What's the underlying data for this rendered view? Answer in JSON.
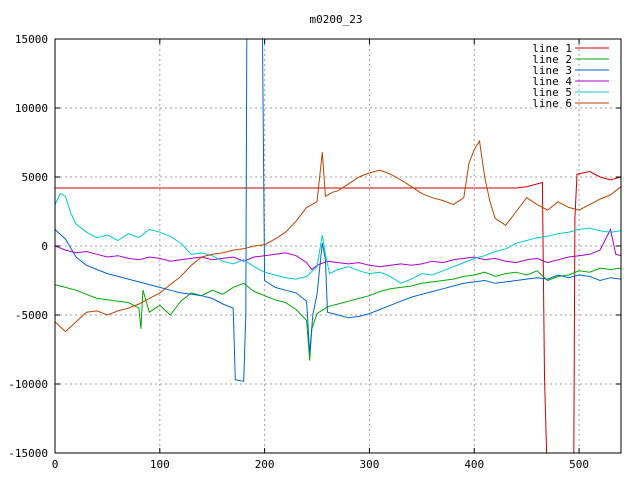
{
  "chart_data": {
    "type": "line",
    "title": "m0200_23",
    "xlabel": "",
    "ylabel": "",
    "xlim": [
      0,
      540
    ],
    "ylim": [
      -15000,
      15000
    ],
    "x_ticks": [
      0,
      100,
      200,
      300,
      400,
      500
    ],
    "y_ticks": [
      -15000,
      -10000,
      -5000,
      0,
      5000,
      10000,
      15000
    ],
    "grid": true,
    "legend_position": "top-right",
    "series": [
      {
        "name": "line 1",
        "color": "#cc0000",
        "points": [
          [
            0,
            4200
          ],
          [
            100,
            4200
          ],
          [
            200,
            4200
          ],
          [
            300,
            4200
          ],
          [
            440,
            4200
          ],
          [
            450,
            4300
          ],
          [
            465,
            4600
          ],
          [
            467,
            -9500
          ],
          [
            469,
            -15000
          ],
          [
            495,
            -15000
          ],
          [
            496,
            2000
          ],
          [
            498,
            5200
          ],
          [
            510,
            5400
          ],
          [
            520,
            5000
          ],
          [
            530,
            4800
          ],
          [
            540,
            5000
          ]
        ]
      },
      {
        "name": "line 2",
        "color": "#00aa00",
        "points": [
          [
            0,
            -2800
          ],
          [
            10,
            -3000
          ],
          [
            20,
            -3200
          ],
          [
            30,
            -3500
          ],
          [
            40,
            -3800
          ],
          [
            50,
            -3900
          ],
          [
            60,
            -4000
          ],
          [
            70,
            -4100
          ],
          [
            80,
            -4500
          ],
          [
            82,
            -6000
          ],
          [
            84,
            -3200
          ],
          [
            90,
            -4800
          ],
          [
            100,
            -4300
          ],
          [
            110,
            -5000
          ],
          [
            120,
            -4000
          ],
          [
            130,
            -3400
          ],
          [
            140,
            -3600
          ],
          [
            150,
            -3200
          ],
          [
            160,
            -3500
          ],
          [
            170,
            -3000
          ],
          [
            180,
            -2700
          ],
          [
            190,
            -3300
          ],
          [
            200,
            -3600
          ],
          [
            210,
            -3900
          ],
          [
            220,
            -4100
          ],
          [
            230,
            -4600
          ],
          [
            240,
            -5400
          ],
          [
            243,
            -8300
          ],
          [
            245,
            -6000
          ],
          [
            250,
            -4900
          ],
          [
            260,
            -4400
          ],
          [
            270,
            -4200
          ],
          [
            280,
            -4000
          ],
          [
            290,
            -3800
          ],
          [
            300,
            -3600
          ],
          [
            310,
            -3300
          ],
          [
            320,
            -3100
          ],
          [
            330,
            -3000
          ],
          [
            340,
            -2900
          ],
          [
            350,
            -2700
          ],
          [
            360,
            -2600
          ],
          [
            370,
            -2500
          ],
          [
            380,
            -2400
          ],
          [
            390,
            -2200
          ],
          [
            400,
            -2100
          ],
          [
            410,
            -1900
          ],
          [
            420,
            -2200
          ],
          [
            430,
            -2000
          ],
          [
            440,
            -1900
          ],
          [
            450,
            -2100
          ],
          [
            460,
            -1800
          ],
          [
            470,
            -2500
          ],
          [
            480,
            -2200
          ],
          [
            490,
            -2100
          ],
          [
            500,
            -1800
          ],
          [
            510,
            -1900
          ],
          [
            520,
            -1600
          ],
          [
            530,
            -1700
          ],
          [
            540,
            -1600
          ]
        ]
      },
      {
        "name": "line 3",
        "color": "#0066cc",
        "points": [
          [
            0,
            1200
          ],
          [
            10,
            500
          ],
          [
            20,
            -800
          ],
          [
            30,
            -1400
          ],
          [
            40,
            -1700
          ],
          [
            50,
            -2000
          ],
          [
            60,
            -2200
          ],
          [
            70,
            -2400
          ],
          [
            80,
            -2600
          ],
          [
            90,
            -2800
          ],
          [
            100,
            -3000
          ],
          [
            110,
            -3200
          ],
          [
            120,
            -3400
          ],
          [
            130,
            -3500
          ],
          [
            140,
            -3600
          ],
          [
            150,
            -3800
          ],
          [
            160,
            -4200
          ],
          [
            170,
            -4500
          ],
          [
            172,
            -9700
          ],
          [
            180,
            -9800
          ],
          [
            182,
            -5000
          ],
          [
            183,
            15000
          ],
          [
            190,
            15000
          ],
          [
            198,
            15000
          ],
          [
            200,
            -2500
          ],
          [
            210,
            -3000
          ],
          [
            220,
            -3200
          ],
          [
            230,
            -3400
          ],
          [
            240,
            -4000
          ],
          [
            243,
            -7800
          ],
          [
            246,
            -5000
          ],
          [
            250,
            -3500
          ],
          [
            255,
            200
          ],
          [
            258,
            -1000
          ],
          [
            260,
            -4800
          ],
          [
            270,
            -5000
          ],
          [
            280,
            -5200
          ],
          [
            290,
            -5100
          ],
          [
            300,
            -4900
          ],
          [
            310,
            -4600
          ],
          [
            320,
            -4300
          ],
          [
            330,
            -4000
          ],
          [
            340,
            -3700
          ],
          [
            350,
            -3500
          ],
          [
            360,
            -3300
          ],
          [
            370,
            -3100
          ],
          [
            380,
            -2900
          ],
          [
            390,
            -2700
          ],
          [
            400,
            -2600
          ],
          [
            410,
            -2500
          ],
          [
            420,
            -2700
          ],
          [
            430,
            -2600
          ],
          [
            440,
            -2500
          ],
          [
            450,
            -2400
          ],
          [
            460,
            -2300
          ],
          [
            470,
            -2400
          ],
          [
            480,
            -2100
          ],
          [
            490,
            -2300
          ],
          [
            500,
            -2100
          ],
          [
            510,
            -2200
          ],
          [
            520,
            -2500
          ],
          [
            530,
            -2300
          ],
          [
            540,
            -2400
          ]
        ]
      },
      {
        "name": "line 4",
        "color": "#aa00cc",
        "points": [
          [
            0,
            0
          ],
          [
            10,
            -300
          ],
          [
            20,
            -500
          ],
          [
            30,
            -400
          ],
          [
            40,
            -600
          ],
          [
            50,
            -800
          ],
          [
            60,
            -700
          ],
          [
            70,
            -900
          ],
          [
            80,
            -1000
          ],
          [
            90,
            -800
          ],
          [
            100,
            -900
          ],
          [
            110,
            -1100
          ],
          [
            120,
            -1000
          ],
          [
            130,
            -900
          ],
          [
            140,
            -800
          ],
          [
            150,
            -1000
          ],
          [
            160,
            -900
          ],
          [
            170,
            -800
          ],
          [
            180,
            -1100
          ],
          [
            190,
            -800
          ],
          [
            200,
            -700
          ],
          [
            210,
            -600
          ],
          [
            220,
            -500
          ],
          [
            230,
            -700
          ],
          [
            240,
            -1200
          ],
          [
            245,
            -1700
          ],
          [
            250,
            -1400
          ],
          [
            260,
            -1100
          ],
          [
            270,
            -1200
          ],
          [
            280,
            -1300
          ],
          [
            290,
            -1200
          ],
          [
            300,
            -1400
          ],
          [
            310,
            -1500
          ],
          [
            320,
            -1400
          ],
          [
            330,
            -1300
          ],
          [
            340,
            -1400
          ],
          [
            350,
            -1300
          ],
          [
            360,
            -1100
          ],
          [
            370,
            -1200
          ],
          [
            380,
            -1000
          ],
          [
            390,
            -900
          ],
          [
            400,
            -800
          ],
          [
            410,
            -1000
          ],
          [
            420,
            -900
          ],
          [
            430,
            -1100
          ],
          [
            440,
            -1200
          ],
          [
            450,
            -1000
          ],
          [
            460,
            -900
          ],
          [
            470,
            -1200
          ],
          [
            480,
            -1000
          ],
          [
            490,
            -800
          ],
          [
            500,
            -700
          ],
          [
            510,
            -600
          ],
          [
            520,
            -300
          ],
          [
            530,
            1200
          ],
          [
            535,
            -600
          ],
          [
            540,
            -700
          ]
        ]
      },
      {
        "name": "line 5",
        "color": "#00cccc",
        "points": [
          [
            0,
            3000
          ],
          [
            5,
            3800
          ],
          [
            10,
            3600
          ],
          [
            15,
            2400
          ],
          [
            20,
            1600
          ],
          [
            30,
            1000
          ],
          [
            40,
            600
          ],
          [
            50,
            800
          ],
          [
            60,
            400
          ],
          [
            70,
            900
          ],
          [
            80,
            600
          ],
          [
            90,
            1200
          ],
          [
            100,
            1000
          ],
          [
            110,
            700
          ],
          [
            120,
            200
          ],
          [
            130,
            -600
          ],
          [
            140,
            -500
          ],
          [
            150,
            -700
          ],
          [
            160,
            -1100
          ],
          [
            170,
            -1300
          ],
          [
            180,
            -1000
          ],
          [
            190,
            -1500
          ],
          [
            200,
            -1900
          ],
          [
            210,
            -2100
          ],
          [
            220,
            -2300
          ],
          [
            230,
            -2400
          ],
          [
            240,
            -2200
          ],
          [
            250,
            -1500
          ],
          [
            255,
            800
          ],
          [
            258,
            -600
          ],
          [
            262,
            -2000
          ],
          [
            270,
            -1700
          ],
          [
            280,
            -1500
          ],
          [
            290,
            -1800
          ],
          [
            300,
            -2000
          ],
          [
            310,
            -1900
          ],
          [
            320,
            -2200
          ],
          [
            330,
            -2700
          ],
          [
            340,
            -2400
          ],
          [
            350,
            -2000
          ],
          [
            360,
            -2100
          ],
          [
            370,
            -1800
          ],
          [
            380,
            -1500
          ],
          [
            390,
            -1200
          ],
          [
            400,
            -900
          ],
          [
            410,
            -700
          ],
          [
            420,
            -400
          ],
          [
            430,
            -200
          ],
          [
            440,
            200
          ],
          [
            450,
            400
          ],
          [
            460,
            600
          ],
          [
            470,
            700
          ],
          [
            480,
            900
          ],
          [
            490,
            1000
          ],
          [
            500,
            1200
          ],
          [
            510,
            1300
          ],
          [
            520,
            1100
          ],
          [
            530,
            1000
          ],
          [
            540,
            1100
          ]
        ]
      },
      {
        "name": "line 6",
        "color": "#bb4400",
        "points": [
          [
            0,
            -5500
          ],
          [
            10,
            -6200
          ],
          [
            20,
            -5500
          ],
          [
            30,
            -4800
          ],
          [
            40,
            -4700
          ],
          [
            50,
            -5000
          ],
          [
            60,
            -4700
          ],
          [
            70,
            -4500
          ],
          [
            80,
            -4200
          ],
          [
            90,
            -3800
          ],
          [
            100,
            -3400
          ],
          [
            110,
            -2800
          ],
          [
            120,
            -2200
          ],
          [
            130,
            -1400
          ],
          [
            140,
            -800
          ],
          [
            150,
            -600
          ],
          [
            160,
            -500
          ],
          [
            170,
            -300
          ],
          [
            180,
            -200
          ],
          [
            190,
            0
          ],
          [
            200,
            100
          ],
          [
            210,
            500
          ],
          [
            220,
            1000
          ],
          [
            230,
            1800
          ],
          [
            240,
            2800
          ],
          [
            250,
            3200
          ],
          [
            255,
            6800
          ],
          [
            258,
            3600
          ],
          [
            265,
            3900
          ],
          [
            270,
            4000
          ],
          [
            280,
            4500
          ],
          [
            290,
            5000
          ],
          [
            300,
            5300
          ],
          [
            310,
            5500
          ],
          [
            320,
            5200
          ],
          [
            330,
            4800
          ],
          [
            340,
            4300
          ],
          [
            350,
            3800
          ],
          [
            360,
            3500
          ],
          [
            370,
            3300
          ],
          [
            380,
            3000
          ],
          [
            390,
            3500
          ],
          [
            395,
            6000
          ],
          [
            400,
            7000
          ],
          [
            405,
            7600
          ],
          [
            410,
            5000
          ],
          [
            415,
            3200
          ],
          [
            420,
            2000
          ],
          [
            430,
            1500
          ],
          [
            440,
            2500
          ],
          [
            450,
            3500
          ],
          [
            460,
            3000
          ],
          [
            470,
            2600
          ],
          [
            480,
            3200
          ],
          [
            490,
            2800
          ],
          [
            500,
            2600
          ],
          [
            510,
            3000
          ],
          [
            520,
            3400
          ],
          [
            530,
            3700
          ],
          [
            540,
            4300
          ]
        ]
      }
    ]
  }
}
